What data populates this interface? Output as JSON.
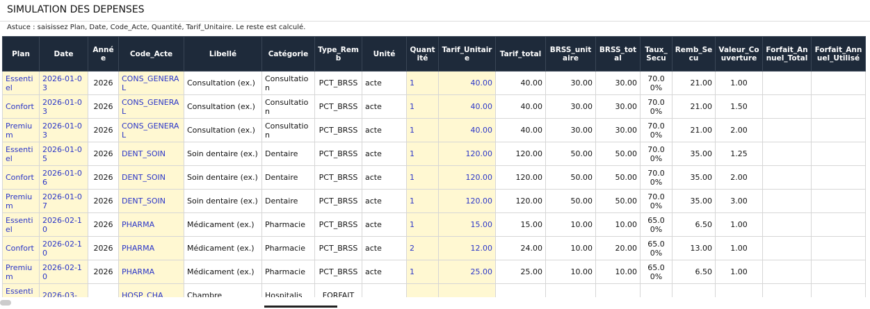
{
  "sheet": {
    "title": "SIMULATION DES DEPENSES",
    "tip": "Astuce : saisissez Plan, Date, Code_Acte, Quantité, Tarif_Unitaire. Le reste est calculé.",
    "table": {
      "headers": [
        "Plan",
        "Date",
        "Année",
        "Code_Acte",
        "Libellé",
        "Catégorie",
        "Type_Remb",
        "Unité",
        "Quantité",
        "Tarif_Unitaire",
        "Tarif_total",
        "BRSS_unitaire",
        "BRSS_total",
        "Taux_Secu",
        "Remb_Secu",
        "Valeur_Couverture",
        "Forfait_Annuel_Total",
        "Forfait_Annuel_Utilisé"
      ],
      "rows": [
        [
          "Essentiel",
          "2026-01-03",
          "2026",
          "CONS_GENERAL",
          "Consultation (ex.)",
          "Consultation",
          "PCT_BRSS",
          "acte",
          "1",
          "40.00",
          "40.00",
          "30.00",
          "30.00",
          "70.00%",
          "21.00",
          "1.00"
        ],
        [
          "Confort",
          "2026-01-03",
          "2026",
          "CONS_GENERAL",
          "Consultation (ex.)",
          "Consultation",
          "PCT_BRSS",
          "acte",
          "1",
          "40.00",
          "40.00",
          "30.00",
          "30.00",
          "70.00%",
          "21.00",
          "1.50"
        ],
        [
          "Premium",
          "2026-01-03",
          "2026",
          "CONS_GENERAL",
          "Consultation (ex.)",
          "Consultation",
          "PCT_BRSS",
          "acte",
          "1",
          "40.00",
          "40.00",
          "30.00",
          "30.00",
          "70.00%",
          "21.00",
          "2.00"
        ],
        [
          "Essentiel",
          "2026-01-05",
          "2026",
          "DENT_SOIN",
          "Soin dentaire (ex.)",
          "Dentaire",
          "PCT_BRSS",
          "acte",
          "1",
          "120.00",
          "120.00",
          "50.00",
          "50.00",
          "70.00%",
          "35.00",
          "1.25"
        ],
        [
          "Confort",
          "2026-01-06",
          "2026",
          "DENT_SOIN",
          "Soin dentaire (ex.)",
          "Dentaire",
          "PCT_BRSS",
          "acte",
          "1",
          "120.00",
          "120.00",
          "50.00",
          "50.00",
          "70.00%",
          "35.00",
          "2.00"
        ],
        [
          "Premium",
          "2026-01-07",
          "2026",
          "DENT_SOIN",
          "Soin dentaire (ex.)",
          "Dentaire",
          "PCT_BRSS",
          "acte",
          "1",
          "120.00",
          "120.00",
          "50.00",
          "50.00",
          "70.00%",
          "35.00",
          "3.00"
        ],
        [
          "Essentiel",
          "2026-02-10",
          "2026",
          "PHARMA",
          "Médicament (ex.)",
          "Pharmacie",
          "PCT_BRSS",
          "acte",
          "1",
          "15.00",
          "15.00",
          "10.00",
          "10.00",
          "65.00%",
          "6.50",
          "1.00"
        ],
        [
          "Confort",
          "2026-02-10",
          "2026",
          "PHARMA",
          "Médicament (ex.)",
          "Pharmacie",
          "PCT_BRSS",
          "acte",
          "2",
          "12.00",
          "24.00",
          "10.00",
          "20.00",
          "65.00%",
          "13.00",
          "1.00"
        ],
        [
          "Premium",
          "2026-02-10",
          "2026",
          "PHARMA",
          "Médicament (ex.)",
          "Pharmacie",
          "PCT_BRSS",
          "acte",
          "1",
          "25.00",
          "25.00",
          "10.00",
          "10.00",
          "65.00%",
          "6.50",
          "1.00"
        ],
        [
          "Essentiel",
          "2026-03-",
          null,
          "HOSP_CHA",
          "Chambre",
          "Hospitalis",
          "FORFAIT"
        ]
      ]
    }
  }
}
